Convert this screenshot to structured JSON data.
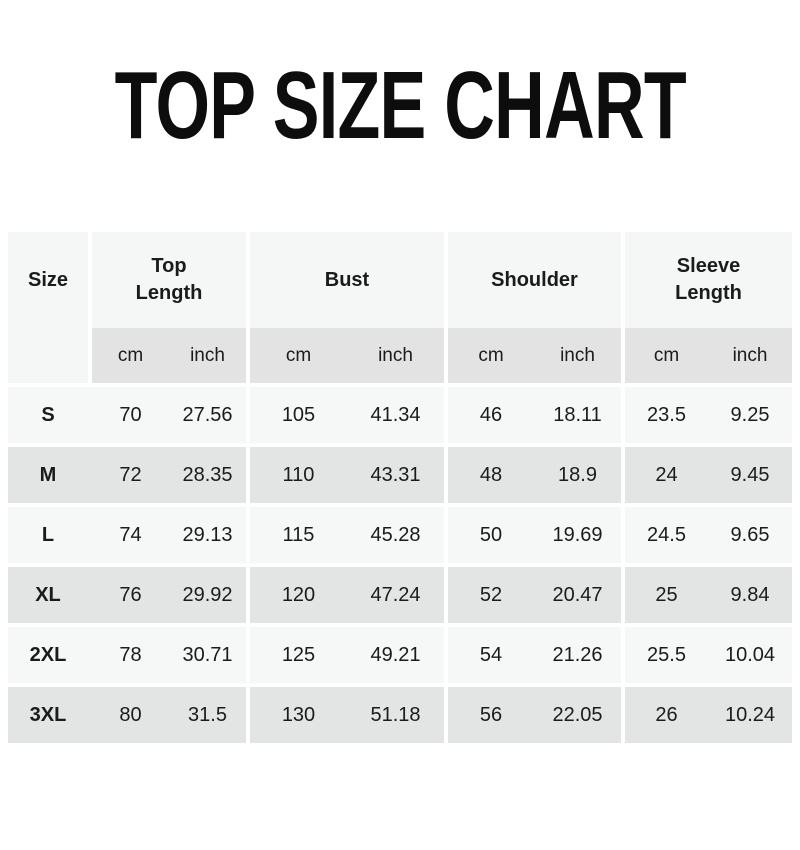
{
  "title": "TOP SIZE CHART",
  "colors": {
    "page_bg": "#ffffff",
    "header_bg": "#f5f6f6",
    "subheader_bg": "#e3e3e3",
    "row_light_bg": "#f6f7f7",
    "row_dark_bg": "#e3e4e4",
    "text": "#1b1b1b",
    "title_text": "#0d0d0d"
  },
  "table": {
    "size_header": "Size",
    "groups": [
      {
        "label": "Top Length",
        "line1": "Top",
        "line2": "Length"
      },
      {
        "label": "Bust",
        "line1": "Bust"
      },
      {
        "label": "Shoulder",
        "line1": "Shoulder"
      },
      {
        "label": "Sleeve Length",
        "line1": "Sleeve",
        "line2": "Length"
      }
    ],
    "unit_headers": [
      "cm",
      "inch",
      "cm",
      "inch",
      "cm",
      "inch",
      "cm",
      "inch"
    ],
    "rows": [
      {
        "size": "S",
        "values": [
          "70",
          "27.56",
          "105",
          "41.34",
          "46",
          "18.11",
          "23.5",
          "9.25"
        ]
      },
      {
        "size": "M",
        "values": [
          "72",
          "28.35",
          "110",
          "43.31",
          "48",
          "18.9",
          "24",
          "9.45"
        ]
      },
      {
        "size": "L",
        "values": [
          "74",
          "29.13",
          "115",
          "45.28",
          "50",
          "19.69",
          "24.5",
          "9.65"
        ]
      },
      {
        "size": "XL",
        "values": [
          "76",
          "29.92",
          "120",
          "47.24",
          "52",
          "20.47",
          "25",
          "9.84"
        ]
      },
      {
        "size": "2XL",
        "values": [
          "78",
          "30.71",
          "125",
          "49.21",
          "54",
          "21.26",
          "25.5",
          "10.04"
        ]
      },
      {
        "size": "3XL",
        "values": [
          "80",
          "31.5",
          "130",
          "51.18",
          "56",
          "22.05",
          "26",
          "10.24"
        ]
      }
    ]
  },
  "chart_data": {
    "type": "table",
    "title": "TOP SIZE CHART",
    "columns": [
      "Size",
      "Top Length (cm)",
      "Top Length (inch)",
      "Bust (cm)",
      "Bust (inch)",
      "Shoulder (cm)",
      "Shoulder (inch)",
      "Sleeve Length (cm)",
      "Sleeve Length (inch)"
    ],
    "rows": [
      [
        "S",
        70,
        27.56,
        105,
        41.34,
        46,
        18.11,
        23.5,
        9.25
      ],
      [
        "M",
        72,
        28.35,
        110,
        43.31,
        48,
        18.9,
        24,
        9.45
      ],
      [
        "L",
        74,
        29.13,
        115,
        45.28,
        50,
        19.69,
        24.5,
        9.65
      ],
      [
        "XL",
        76,
        29.92,
        120,
        47.24,
        52,
        20.47,
        25,
        9.84
      ],
      [
        "2XL",
        78,
        30.71,
        125,
        49.21,
        54,
        21.26,
        25.5,
        10.04
      ],
      [
        "3XL",
        80,
        31.5,
        130,
        51.18,
        56,
        22.05,
        26,
        10.24
      ]
    ]
  }
}
